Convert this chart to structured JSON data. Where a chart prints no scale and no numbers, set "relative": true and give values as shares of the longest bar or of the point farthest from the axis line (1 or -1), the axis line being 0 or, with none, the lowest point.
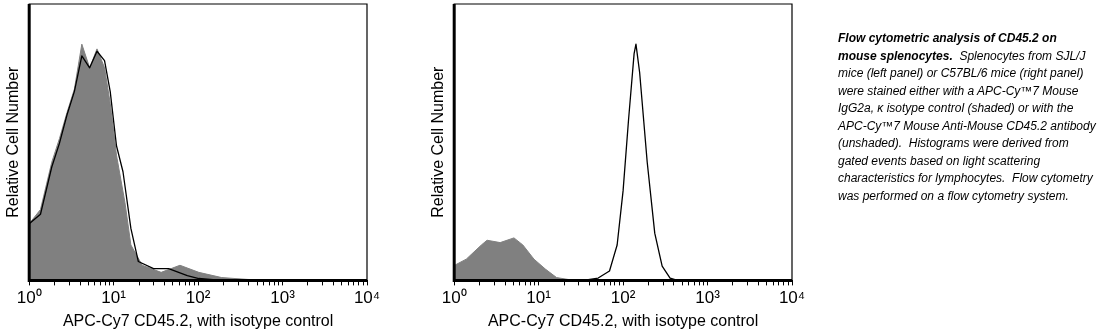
{
  "chart_data": [
    {
      "type": "area",
      "relative": true,
      "log": "x",
      "grid": false,
      "legend": false,
      "tick_labels": "x",
      "xlabel": "APC-Cy7 CD45.2, with isotype control",
      "ylabel": "Relative Cell Number",
      "xlim": [
        1,
        10000
      ],
      "xticks": [
        {
          "value": 1,
          "label": "10⁰"
        },
        {
          "value": 2,
          "label": null
        },
        {
          "value": 3,
          "label": null
        },
        {
          "value": 4,
          "label": null
        },
        {
          "value": 5,
          "label": null
        },
        {
          "value": 6,
          "label": null
        },
        {
          "value": 7,
          "label": null
        },
        {
          "value": 8,
          "label": null
        },
        {
          "value": 9,
          "label": null
        },
        {
          "value": 10,
          "label": "10¹"
        },
        {
          "value": 20,
          "label": null
        },
        {
          "value": 30,
          "label": null
        },
        {
          "value": 40,
          "label": null
        },
        {
          "value": 50,
          "label": null
        },
        {
          "value": 60,
          "label": null
        },
        {
          "value": 70,
          "label": null
        },
        {
          "value": 80,
          "label": null
        },
        {
          "value": 90,
          "label": null
        },
        {
          "value": 100,
          "label": "10²"
        },
        {
          "value": 200,
          "label": null
        },
        {
          "value": 300,
          "label": null
        },
        {
          "value": 400,
          "label": null
        },
        {
          "value": 500,
          "label": null
        },
        {
          "value": 600,
          "label": null
        },
        {
          "value": 700,
          "label": null
        },
        {
          "value": 800,
          "label": null
        },
        {
          "value": 900,
          "label": null
        },
        {
          "value": 1000,
          "label": "10³"
        },
        {
          "value": 2000,
          "label": null
        },
        {
          "value": 3000,
          "label": null
        },
        {
          "value": 4000,
          "label": null
        },
        {
          "value": 5000,
          "label": null
        },
        {
          "value": 6000,
          "label": null
        },
        {
          "value": 7000,
          "label": null
        },
        {
          "value": 8000,
          "label": null
        },
        {
          "value": 9000,
          "label": null
        },
        {
          "value": 10000,
          "label": "10⁴"
        }
      ],
      "series": [
        {
          "type": "area",
          "color": "#808080",
          "x": [
            1,
            1.36,
            1.85,
            2.28,
            2.8,
            3.43,
            4.2,
            5.2,
            6.35,
            7.8,
            9.1,
            10.8,
            13.6,
            16,
            21.8,
            36.5,
            61,
            102,
            190,
            390,
            1090,
            10000
          ],
          "values": [
            0.24,
            0.3,
            0.5,
            0.6,
            0.71,
            0.81,
            1,
            0.9,
            0.98,
            0.9,
            0.75,
            0.53,
            0.33,
            0.15,
            0.064,
            0.034,
            0.064,
            0.034,
            0.012,
            0.004,
            0,
            0
          ]
        },
        {
          "type": "line",
          "color": "#000000",
          "x": [
            1,
            1.36,
            1.85,
            2.28,
            2.8,
            3.43,
            4.2,
            5.2,
            6.35,
            7.8,
            9.1,
            10.8,
            12.9,
            16,
            19.6,
            29.7,
            44.8,
            74.5,
            102,
            190,
            10000
          ],
          "values": [
            0.24,
            0.28,
            0.48,
            0.58,
            0.7,
            0.8,
            0.95,
            0.9,
            0.97,
            0.93,
            0.8,
            0.57,
            0.46,
            0.22,
            0.08,
            0.05,
            0.05,
            0.02,
            0.008,
            0,
            0
          ]
        }
      ]
    },
    {
      "type": "area",
      "relative": true,
      "log": "x",
      "grid": false,
      "legend": false,
      "tick_labels": "x",
      "xlabel": "APC-Cy7 CD45.2, with isotype control",
      "ylabel": "Relative Cell Number",
      "xlim": [
        1,
        10000
      ],
      "xticks": [
        {
          "value": 1,
          "label": "10⁰"
        },
        {
          "value": 2,
          "label": null
        },
        {
          "value": 3,
          "label": null
        },
        {
          "value": 4,
          "label": null
        },
        {
          "value": 5,
          "label": null
        },
        {
          "value": 6,
          "label": null
        },
        {
          "value": 7,
          "label": null
        },
        {
          "value": 8,
          "label": null
        },
        {
          "value": 9,
          "label": null
        },
        {
          "value": 10,
          "label": "10¹"
        },
        {
          "value": 20,
          "label": null
        },
        {
          "value": 30,
          "label": null
        },
        {
          "value": 40,
          "label": null
        },
        {
          "value": 50,
          "label": null
        },
        {
          "value": 60,
          "label": null
        },
        {
          "value": 70,
          "label": null
        },
        {
          "value": 80,
          "label": null
        },
        {
          "value": 90,
          "label": null
        },
        {
          "value": 100,
          "label": "10²"
        },
        {
          "value": 200,
          "label": null
        },
        {
          "value": 300,
          "label": null
        },
        {
          "value": 400,
          "label": null
        },
        {
          "value": 500,
          "label": null
        },
        {
          "value": 600,
          "label": null
        },
        {
          "value": 700,
          "label": null
        },
        {
          "value": 800,
          "label": null
        },
        {
          "value": 900,
          "label": null
        },
        {
          "value": 1000,
          "label": "10³"
        },
        {
          "value": 2000,
          "label": null
        },
        {
          "value": 3000,
          "label": null
        },
        {
          "value": 4000,
          "label": null
        },
        {
          "value": 5000,
          "label": null
        },
        {
          "value": 6000,
          "label": null
        },
        {
          "value": 7000,
          "label": null
        },
        {
          "value": 8000,
          "label": null
        },
        {
          "value": 9000,
          "label": null
        },
        {
          "value": 10000,
          "label": "10⁴"
        }
      ],
      "series": [
        {
          "type": "area",
          "color": "#808080",
          "x": [
            1,
            1.39,
            2.1,
            2.45,
            3.5,
            5.1,
            6.5,
            8.8,
            12,
            16.3,
            22.3,
            33.7,
            300,
            10000
          ],
          "values": [
            0.063,
            0.09,
            0.15,
            0.17,
            0.16,
            0.18,
            0.15,
            0.09,
            0.048,
            0.012,
            0.004,
            0,
            0,
            0
          ]
        },
        {
          "type": "line",
          "color": "#000000",
          "x": [
            1,
            33.7,
            50.7,
            69,
            85,
            100,
            116,
            135,
            142,
            157,
            193,
            237,
            290,
            360,
            440,
            10000
          ],
          "values": [
            0,
            0,
            0.01,
            0.04,
            0.15,
            0.38,
            0.68,
            0.96,
            1,
            0.88,
            0.5,
            0.2,
            0.06,
            0.01,
            0,
            0
          ]
        }
      ]
    },
    {
      "type": "other",
      "title": "Flow cytometric analysis of CD45.2 on mouse splenocytes.",
      "annotations": [
        "Splenocytes from SJL/J mice (left panel) or C57BL/6 mice (right panel) were stained either with a APC-Cy™7 Mouse IgG2a, κ isotype control (shaded) or with the APC-Cy™7 Mouse Anti-Mouse CD45.2 antibody (unshaded).  Histograms were derived from gated events based on light scattering characteristics for lymphocytes.  Flow cytometry was performed on a flow cytometry system."
      ]
    }
  ]
}
